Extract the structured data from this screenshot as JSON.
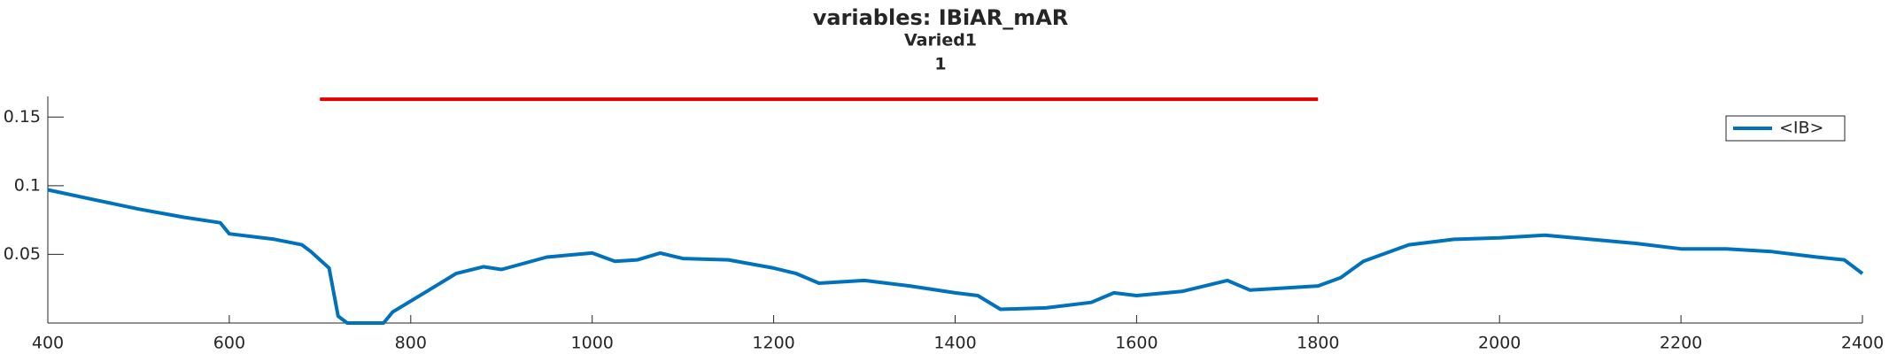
{
  "chart_data": {
    "type": "line",
    "title": "variables: IBiAR_mAR",
    "subtitles": [
      "Varied1",
      "1"
    ],
    "xlim": [
      400,
      2400
    ],
    "xticks": [
      400,
      600,
      800,
      1000,
      1200,
      1400,
      1600,
      1800,
      2000,
      2200,
      2400
    ],
    "ylim": [
      0,
      0.165
    ],
    "yticks": [
      0.05,
      0.1,
      0.15
    ],
    "legend": "northeast",
    "series": [
      {
        "name": "<IB>",
        "color": "#0072bd",
        "x": [
          400,
          450,
          500,
          550,
          590,
          600,
          650,
          680,
          690,
          700,
          710,
          720,
          730,
          770,
          780,
          800,
          820,
          850,
          880,
          900,
          950,
          1000,
          1025,
          1050,
          1075,
          1100,
          1150,
          1200,
          1225,
          1250,
          1300,
          1350,
          1400,
          1425,
          1450,
          1500,
          1550,
          1575,
          1600,
          1650,
          1700,
          1725,
          1750,
          1800,
          1825,
          1850,
          1900,
          1950,
          2000,
          2050,
          2100,
          2150,
          2200,
          2250,
          2300,
          2350,
          2380,
          2400
        ],
        "values": [
          0.097,
          0.09,
          0.083,
          0.077,
          0.073,
          0.065,
          0.061,
          0.057,
          0.052,
          0.046,
          0.04,
          0.005,
          0.0,
          0.0,
          0.008,
          0.016,
          0.024,
          0.036,
          0.041,
          0.039,
          0.048,
          0.051,
          0.045,
          0.046,
          0.051,
          0.047,
          0.046,
          0.04,
          0.036,
          0.029,
          0.031,
          0.027,
          0.022,
          0.02,
          0.01,
          0.011,
          0.015,
          0.022,
          0.02,
          0.023,
          0.031,
          0.024,
          0.025,
          0.027,
          0.033,
          0.045,
          0.057,
          0.061,
          0.062,
          0.064,
          0.061,
          0.058,
          0.054,
          0.054,
          0.052,
          0.048,
          0.046,
          0.036
        ]
      },
      {
        "color": "#e00000",
        "x": [
          700,
          1800
        ],
        "values": [
          0.163,
          0.163
        ]
      }
    ]
  }
}
